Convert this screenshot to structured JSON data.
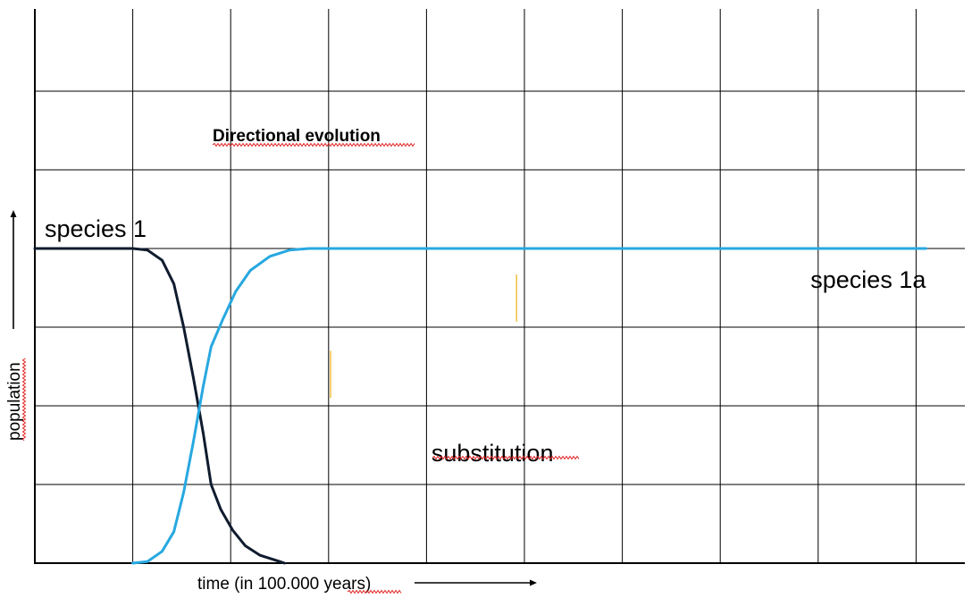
{
  "chart_data": {
    "type": "line",
    "title": "Directional evolution",
    "xlabel": "time (in 100.000 years)",
    "ylabel": "population",
    "grid": true,
    "xlim": [
      0,
      9.5
    ],
    "ylim": [
      0,
      4
    ],
    "annotations": [
      {
        "name": "annotation-substitution",
        "text": "substitution",
        "x": 4.05,
        "y": 1.4
      }
    ],
    "series": [
      {
        "name": "species 1",
        "label_x": 0.1,
        "label_y": 4.25,
        "color": "#0f1c2e",
        "points": [
          [
            0,
            4
          ],
          [
            1.0,
            4
          ],
          [
            1.15,
            3.98
          ],
          [
            1.3,
            3.85
          ],
          [
            1.42,
            3.55
          ],
          [
            1.52,
            3.0
          ],
          [
            1.62,
            2.35
          ],
          [
            1.72,
            1.65
          ],
          [
            1.8,
            1.0
          ],
          [
            1.9,
            0.68
          ],
          [
            2.02,
            0.42
          ],
          [
            2.15,
            0.22
          ],
          [
            2.3,
            0.1
          ],
          [
            2.5,
            0.02
          ],
          [
            2.55,
            0.0
          ]
        ]
      },
      {
        "name": "species 1a",
        "label_x": 9.1,
        "label_y": 3.6,
        "color": "#27a8e0",
        "points": [
          [
            1.0,
            0
          ],
          [
            1.15,
            0.02
          ],
          [
            1.3,
            0.15
          ],
          [
            1.42,
            0.4
          ],
          [
            1.52,
            0.9
          ],
          [
            1.62,
            1.55
          ],
          [
            1.72,
            2.25
          ],
          [
            1.8,
            2.75
          ],
          [
            1.92,
            3.1
          ],
          [
            2.05,
            3.45
          ],
          [
            2.2,
            3.72
          ],
          [
            2.4,
            3.9
          ],
          [
            2.6,
            3.98
          ],
          [
            2.8,
            4.0
          ],
          [
            9.1,
            4.0
          ]
        ]
      }
    ],
    "marks": [
      {
        "color": "#f0c040",
        "x": 3.02,
        "y0": 2.1,
        "y1": 2.7
      },
      {
        "color": "#f0c040",
        "x": 4.92,
        "y0": 3.07,
        "y1": 3.67
      }
    ]
  },
  "spellcheck_color": "#e02020"
}
